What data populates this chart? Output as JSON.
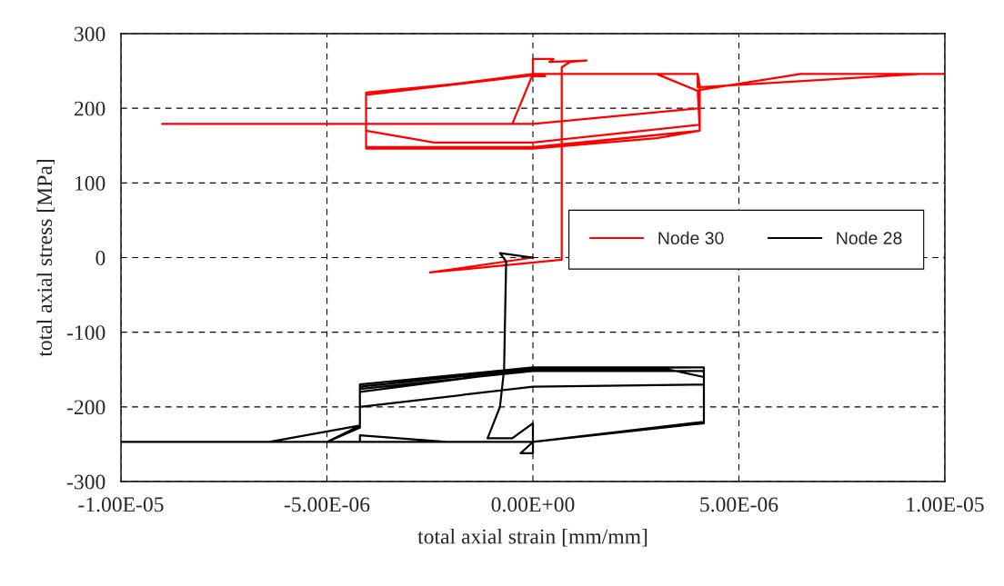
{
  "chart_data": {
    "type": "line",
    "xlabel": "total axial strain [mm/mm]",
    "ylabel": "total axial stress [MPa]",
    "xlim": [
      -1e-05,
      1e-05
    ],
    "xticks": [
      {
        "value": -1e-05,
        "label": "-1.00E-05"
      },
      {
        "value": -5e-06,
        "label": "-5.00E-06"
      },
      {
        "value": 0,
        "label": "0.00E+00"
      },
      {
        "value": 5e-06,
        "label": "5.00E-06"
      },
      {
        "value": 1e-05,
        "label": "1.00E-05"
      }
    ],
    "ylim": [
      -300,
      300
    ],
    "yticks": [
      -300,
      -200,
      -100,
      0,
      100,
      200,
      300
    ],
    "grid": true,
    "legend": "right",
    "marker": "none",
    "line_style": "solid",
    "series": [
      {
        "name": "Node 30",
        "color": "#ff0000",
        "x": [
          0,
          -2.5e-06,
          7e-07,
          7e-07,
          9e-07,
          1.3e-06,
          4e-07,
          5e-07,
          0,
          0,
          3e-07,
          0,
          4e-06,
          4e-06,
          9.4e-06,
          1e-05,
          6.5e-06,
          4e-06,
          4.05e-06,
          3e-06,
          0,
          -4.05e-06,
          -4.05e-06,
          -2e-06,
          0,
          3e-06,
          4.05e-06,
          4.05e-06,
          0,
          -9e-06,
          -5e-07,
          0,
          4e-06,
          4.05e-06,
          4.05e-06,
          0,
          -4.05e-06,
          -4.05e-06,
          -2.4e-06,
          0,
          4.05e-06,
          4.05e-06,
          0,
          -4.05e-06,
          -4.05e-06,
          0
        ],
        "values": [
          0,
          -20,
          -3,
          255,
          262,
          264,
          262,
          266,
          266,
          243,
          243,
          246,
          246,
          228,
          246,
          246,
          246,
          224,
          170,
          160,
          146,
          146,
          221,
          232,
          246,
          246,
          222,
          200,
          179,
          179,
          179,
          246,
          246,
          230,
          170,
          148,
          148,
          170,
          154,
          154,
          178,
          170,
          147,
          147,
          218,
          244
        ]
      },
      {
        "name": "Node 28",
        "color": "#000000",
        "x": [
          0,
          -8e-07,
          -6.5e-07,
          -7e-07,
          -8e-07,
          -1.1e-06,
          -5e-07,
          0,
          0,
          -3e-07,
          0,
          0,
          -1e-05,
          -6.4e-06,
          -4.2e-06,
          -5e-06,
          -4.2e-06,
          -4.2e-06,
          0,
          4.15e-06,
          4.15e-06,
          0,
          -4.2e-06,
          -4.2e-06,
          -2.1e-06,
          0,
          4.15e-06,
          4.15e-06,
          0,
          -4.2e-06,
          -4.2e-06,
          0,
          3.3e-06,
          4.15e-06,
          4.15e-06,
          0,
          -4.2e-06,
          -4.2e-06,
          0,
          4.15e-06
        ],
        "values": [
          0,
          6,
          -5,
          -150,
          -200,
          -242,
          -242,
          -222,
          -247,
          -262,
          -262,
          -247,
          -247,
          -247,
          -225,
          -247,
          -228,
          -170,
          -147,
          -147,
          -222,
          -247,
          -247,
          -238,
          -247,
          -247,
          -220,
          -170,
          -173,
          -200,
          -180,
          -150,
          -150,
          -160,
          -147,
          -149,
          -173,
          -176,
          -152,
          -152
        ]
      }
    ]
  }
}
